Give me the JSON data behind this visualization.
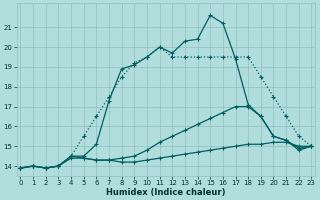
{
  "xlabel": "Humidex (Indice chaleur)",
  "background_color": "#b2dddd",
  "grid_color": "#90c0c0",
  "line_color": "#005f5f",
  "x_values": [
    0,
    1,
    2,
    3,
    4,
    5,
    6,
    7,
    8,
    9,
    10,
    11,
    12,
    13,
    14,
    15,
    16,
    17,
    18,
    19,
    20,
    21,
    22,
    23
  ],
  "series_dotted": [
    13.9,
    14.0,
    13.9,
    14.0,
    14.5,
    15.5,
    16.5,
    17.5,
    18.5,
    19.2,
    19.5,
    20.0,
    19.5,
    19.5,
    19.5,
    19.5,
    19.5,
    19.5,
    19.5,
    18.5,
    17.5,
    16.5,
    15.5,
    15.0
  ],
  "series_high_solid": [
    13.9,
    14.0,
    13.9,
    14.0,
    14.5,
    14.5,
    15.1,
    17.3,
    18.9,
    19.1,
    19.5,
    20.0,
    19.7,
    20.3,
    20.4,
    21.6,
    21.2,
    19.4,
    17.1,
    16.5,
    15.5,
    15.3,
    14.8,
    15.0
  ],
  "series_mid_solid": [
    13.9,
    14.0,
    13.9,
    14.0,
    14.5,
    14.4,
    14.3,
    14.3,
    14.4,
    14.5,
    14.8,
    15.2,
    15.5,
    15.8,
    16.1,
    16.4,
    16.7,
    17.0,
    17.0,
    16.5,
    15.5,
    15.3,
    14.9,
    15.0
  ],
  "series_flat_solid": [
    13.9,
    14.0,
    13.9,
    14.0,
    14.4,
    14.4,
    14.3,
    14.3,
    14.2,
    14.2,
    14.3,
    14.4,
    14.5,
    14.6,
    14.7,
    14.8,
    14.9,
    15.0,
    15.1,
    15.1,
    15.2,
    15.2,
    15.0,
    15.0
  ],
  "ylim": [
    13.5,
    22.2
  ],
  "yticks": [
    14,
    15,
    16,
    17,
    18,
    19,
    20,
    21
  ],
  "xticks": [
    0,
    1,
    2,
    3,
    4,
    5,
    6,
    7,
    8,
    9,
    10,
    11,
    12,
    13,
    14,
    15,
    16,
    17,
    18,
    19,
    20,
    21,
    22,
    23
  ],
  "xlim": [
    -0.3,
    23.3
  ]
}
